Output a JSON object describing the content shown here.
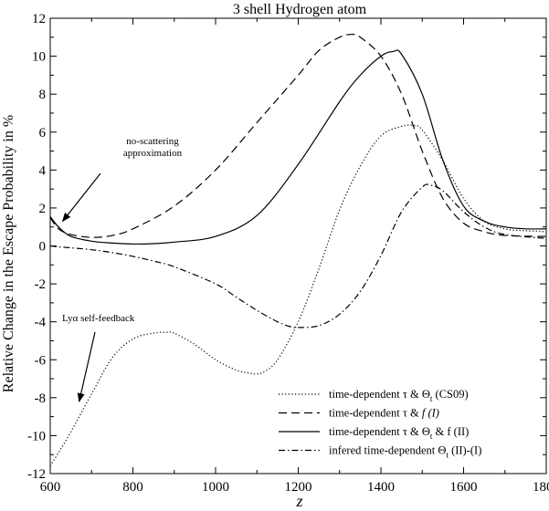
{
  "chart_data": {
    "type": "line",
    "title": "3 shell Hydrogen atom",
    "xlabel": "z",
    "ylabel": "Relative Change in the Escape Probability in %",
    "xlim": [
      600,
      1800
    ],
    "ylim": [
      -12,
      12
    ],
    "xticks": [
      600,
      800,
      1000,
      1200,
      1400,
      1600,
      1800
    ],
    "yticks": [
      -12,
      -10,
      -8,
      -6,
      -4,
      -2,
      0,
      2,
      4,
      6,
      8,
      10,
      12
    ],
    "grid": false,
    "legend_position": "bottom-right",
    "series": [
      {
        "name": "time-dependent τ & Θt (CS09)",
        "legend": {
          "pre": "time-dependent τ & Θ",
          "sub": "t",
          "post": " (CS09)"
        },
        "style": "dotted",
        "x": [
          600,
          620,
          650,
          700,
          750,
          800,
          850,
          880,
          900,
          950,
          1000,
          1050,
          1080,
          1100,
          1120,
          1150,
          1200,
          1250,
          1300,
          1350,
          1400,
          1450,
          1480,
          1500,
          1550,
          1600,
          1650,
          1700,
          1750,
          1800
        ],
        "y": [
          -11.6,
          -10.9,
          -9.8,
          -7.8,
          -5.9,
          -4.9,
          -4.6,
          -4.55,
          -4.6,
          -5.2,
          -6.0,
          -6.55,
          -6.7,
          -6.75,
          -6.6,
          -6.0,
          -4.0,
          -1.2,
          1.9,
          4.2,
          5.8,
          6.3,
          6.35,
          6.1,
          4.5,
          2.5,
          1.3,
          0.9,
          0.8,
          0.75
        ]
      },
      {
        "name": "time-dependent τ & f (I)",
        "legend": {
          "pre": "time-dependent τ & ",
          "sub": "",
          "post": "f  (I)"
        },
        "style": "dashed",
        "x": [
          600,
          620,
          650,
          700,
          750,
          800,
          900,
          1000,
          1100,
          1200,
          1250,
          1300,
          1330,
          1350,
          1400,
          1450,
          1500,
          1550,
          1600,
          1650,
          1700,
          1800
        ],
        "y": [
          1.5,
          0.9,
          0.6,
          0.45,
          0.55,
          0.9,
          2.1,
          4.0,
          6.5,
          9.0,
          10.3,
          11.0,
          11.15,
          11.0,
          10.0,
          8.0,
          5.0,
          2.5,
          1.2,
          0.75,
          0.55,
          0.5
        ]
      },
      {
        "name": "time-dependent τ & Θt & f (II)",
        "legend": {
          "pre": "time-dependent τ & Θ",
          "sub": "t",
          "post": " & f  (II)"
        },
        "style": "solid",
        "x": [
          600,
          620,
          650,
          700,
          750,
          800,
          850,
          900,
          1000,
          1100,
          1200,
          1300,
          1350,
          1400,
          1430,
          1450,
          1500,
          1550,
          1600,
          1650,
          1700,
          1750,
          1800
        ],
        "y": [
          1.55,
          1.0,
          0.5,
          0.25,
          0.15,
          0.1,
          0.12,
          0.2,
          0.5,
          1.6,
          4.3,
          7.6,
          9.0,
          10.0,
          10.25,
          10.1,
          8.0,
          4.5,
          2.1,
          1.3,
          1.0,
          0.9,
          0.9
        ]
      },
      {
        "name": "infered time-dependent Θt (II)-(I)",
        "legend": {
          "pre": "infered time-dependent Θ",
          "sub": "t",
          "post": " (II)-(I)"
        },
        "style": "dashdot",
        "x": [
          600,
          620,
          650,
          700,
          750,
          800,
          850,
          900,
          1000,
          1050,
          1100,
          1150,
          1180,
          1200,
          1250,
          1300,
          1350,
          1400,
          1450,
          1500,
          1520,
          1550,
          1600,
          1650,
          1700,
          1800
        ],
        "y": [
          0.0,
          -0.05,
          -0.1,
          -0.2,
          -0.35,
          -0.55,
          -0.8,
          -1.1,
          -2.0,
          -2.7,
          -3.4,
          -4.0,
          -4.25,
          -4.3,
          -4.2,
          -3.6,
          -2.4,
          -0.5,
          1.8,
          3.1,
          3.2,
          2.9,
          1.8,
          1.0,
          0.6,
          0.4
        ]
      }
    ],
    "annotations": [
      {
        "id": "no-scatter",
        "lines": [
          "no-scattering",
          "approximation"
        ],
        "arrow_to": [
          630,
          1.3
        ]
      },
      {
        "id": "lya",
        "lines": [
          "Lyα self-feedback"
        ],
        "arrow_to": [
          670,
          -8.2
        ]
      }
    ]
  }
}
